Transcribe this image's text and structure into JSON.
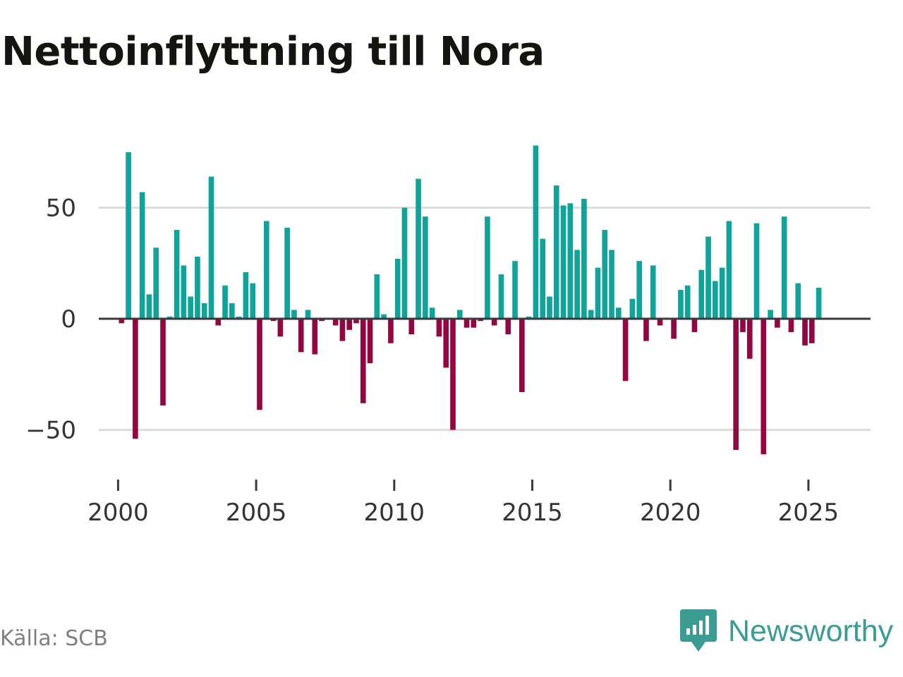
{
  "title": "Nettoinflyttning till Nora",
  "source": "Källa: SCB",
  "brand": {
    "name": "Newsworthy",
    "icon": "newsworthy-logo-icon"
  },
  "colors": {
    "positive": "#0fa39a",
    "negative": "#94063f",
    "grid": "#dcdcdc",
    "zero_line": "#3a3a3a",
    "text": "#333333",
    "brand": "#3a9c93"
  },
  "chart_data": {
    "type": "bar",
    "title": "Nettoinflyttning till Nora",
    "xlabel": "",
    "ylabel": "",
    "frequency": "quarterly",
    "x_start": 2000.0,
    "ylim": [
      -66,
      80
    ],
    "xlim": [
      1999.3,
      2027.25
    ],
    "y_ticks": [
      -50,
      0,
      50
    ],
    "y_tick_labels": [
      "−50",
      "0",
      "50"
    ],
    "x_ticks": [
      2000,
      2005,
      2010,
      2015,
      2020,
      2025
    ],
    "x_tick_labels": [
      "2000",
      "2005",
      "2010",
      "2015",
      "2020",
      "2025"
    ],
    "grid": true,
    "categories": [
      "2000 Q1",
      "2000 Q2",
      "2000 Q3",
      "2000 Q4",
      "2001 Q1",
      "2001 Q2",
      "2001 Q3",
      "2001 Q4",
      "2002 Q1",
      "2002 Q2",
      "2002 Q3",
      "2002 Q4",
      "2003 Q1",
      "2003 Q2",
      "2003 Q3",
      "2003 Q4",
      "2004 Q1",
      "2004 Q2",
      "2004 Q3",
      "2004 Q4",
      "2005 Q1",
      "2005 Q2",
      "2005 Q3",
      "2005 Q4",
      "2006 Q1",
      "2006 Q2",
      "2006 Q3",
      "2006 Q4",
      "2007 Q1",
      "2007 Q2",
      "2007 Q3",
      "2007 Q4",
      "2008 Q1",
      "2008 Q2",
      "2008 Q3",
      "2008 Q4",
      "2009 Q1",
      "2009 Q2",
      "2009 Q3",
      "2009 Q4",
      "2010 Q1",
      "2010 Q2",
      "2010 Q3",
      "2010 Q4",
      "2011 Q1",
      "2011 Q2",
      "2011 Q3",
      "2011 Q4",
      "2012 Q1",
      "2012 Q2",
      "2012 Q3",
      "2012 Q4",
      "2013 Q1",
      "2013 Q2",
      "2013 Q3",
      "2013 Q4",
      "2014 Q1",
      "2014 Q2",
      "2014 Q3",
      "2014 Q4",
      "2015 Q1",
      "2015 Q2",
      "2015 Q3",
      "2015 Q4",
      "2016 Q1",
      "2016 Q2",
      "2016 Q3",
      "2016 Q4",
      "2017 Q1",
      "2017 Q2",
      "2017 Q3",
      "2017 Q4",
      "2018 Q1",
      "2018 Q2",
      "2018 Q3",
      "2018 Q4",
      "2019 Q1",
      "2019 Q2",
      "2019 Q3",
      "2019 Q4",
      "2020 Q1",
      "2020 Q2",
      "2020 Q3",
      "2020 Q4",
      "2021 Q1",
      "2021 Q2",
      "2021 Q3",
      "2021 Q4",
      "2022 Q1",
      "2022 Q2",
      "2022 Q3",
      "2022 Q4",
      "2023 Q1",
      "2023 Q2",
      "2023 Q3",
      "2023 Q4",
      "2024 Q1",
      "2024 Q2",
      "2024 Q3",
      "2024 Q4",
      "2025 Q1",
      "2025 Q2",
      "2025 Q3",
      "2025 Q4"
    ],
    "values": [
      -2,
      75,
      -54,
      57,
      11,
      32,
      -39,
      1,
      40,
      24,
      10,
      28,
      7,
      64,
      -3,
      15,
      7,
      1,
      21,
      16,
      -41,
      44,
      -1,
      -8,
      41,
      4,
      -15,
      4,
      -16,
      -1,
      0,
      -3,
      -10,
      -5,
      -2,
      -38,
      -20,
      20,
      2,
      -11,
      27,
      50,
      -7,
      63,
      46,
      5,
      -8,
      -22,
      -50,
      4,
      -4,
      -4,
      -1,
      46,
      -3,
      20,
      -7,
      26,
      -33,
      1,
      78,
      36,
      10,
      60,
      51,
      52,
      31,
      54,
      4,
      23,
      40,
      31,
      5,
      -28,
      9,
      26,
      -10,
      24,
      -3,
      0,
      -9,
      13,
      15,
      -6,
      22,
      37,
      17,
      23,
      44,
      -59,
      -6,
      -18,
      43,
      -61,
      4,
      -4,
      46,
      -6,
      16,
      -12,
      -11,
      14,
      0,
      0
    ]
  }
}
